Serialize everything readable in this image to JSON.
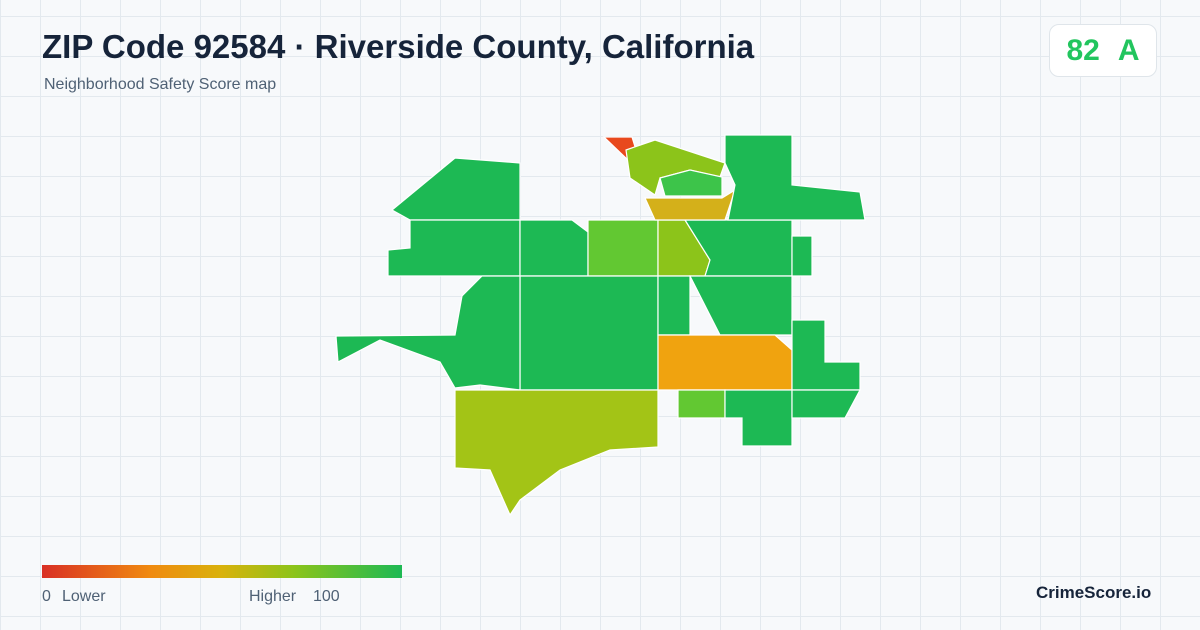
{
  "header": {
    "title": "ZIP Code 92584 · Riverside County, California",
    "subtitle": "Neighborhood Safety Score map"
  },
  "score": {
    "value": "82",
    "grade": "A"
  },
  "legend": {
    "min": "0",
    "min_label": "Lower",
    "max_label": "Higher",
    "max": "100"
  },
  "brand": "CrimeScore.io"
}
